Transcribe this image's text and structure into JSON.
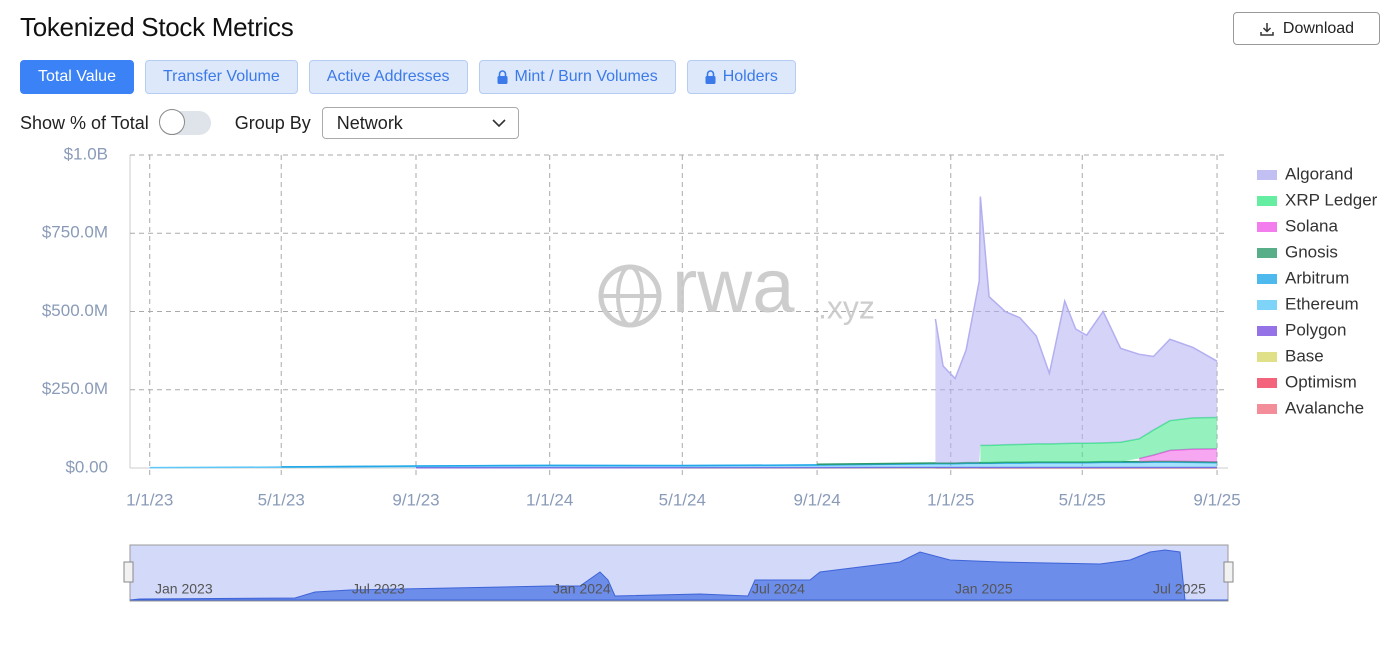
{
  "header": {
    "title": "Tokenized Stock Metrics",
    "download": "Download"
  },
  "tabs": [
    "Total Value",
    "Transfer Volume",
    "Active Addresses",
    "Mint / Burn Volumes",
    "Holders"
  ],
  "controls": {
    "toggle_label": "Show % of Total",
    "group_by_label": "Group By",
    "group_by_value": "Network"
  },
  "watermark": {
    "main": "rwa",
    "suffix": ".xyz"
  },
  "navigator": {
    "labels": [
      "Jan 2023",
      "Jul 2023",
      "Jan 2024",
      "Jul 2024",
      "Jan 2025",
      "Jul 2025"
    ]
  },
  "chart_data": {
    "type": "stacked_area",
    "x": [
      "2023-01-01",
      "2023-05-01",
      "2023-09-01",
      "2024-01-01",
      "2024-05-01",
      "2024-09-01",
      "2024-12-18",
      "2024-12-25",
      "2025-01-05",
      "2025-01-15",
      "2025-01-27",
      "2025-01-28",
      "2025-02-05",
      "2025-02-20",
      "2025-03-05",
      "2025-03-20",
      "2025-04-01",
      "2025-04-15",
      "2025-04-25",
      "2025-05-05",
      "2025-05-20",
      "2025-06-05",
      "2025-06-22",
      "2025-07-05",
      "2025-07-20",
      "2025-08-10",
      "2025-09-01"
    ],
    "xlim": [
      "2022-12-14",
      "2025-09-11"
    ],
    "xticks": [
      {
        "value": "2023-01-01",
        "label": "1/1/23"
      },
      {
        "value": "2023-05-01",
        "label": "5/1/23"
      },
      {
        "value": "2023-09-01",
        "label": "9/1/23"
      },
      {
        "value": "2024-01-01",
        "label": "1/1/24"
      },
      {
        "value": "2024-05-01",
        "label": "5/1/24"
      },
      {
        "value": "2024-09-01",
        "label": "9/1/24"
      },
      {
        "value": "2025-01-01",
        "label": "1/1/25"
      },
      {
        "value": "2025-05-01",
        "label": "5/1/25"
      },
      {
        "value": "2025-09-01",
        "label": "9/1/25"
      }
    ],
    "ylim": [
      0,
      1000000000
    ],
    "yticks": [
      {
        "value": 0,
        "label": "$0.00"
      },
      {
        "value": 250000000,
        "label": "$250.0M"
      },
      {
        "value": 500000000,
        "label": "$500.0M"
      },
      {
        "value": 750000000,
        "label": "$750.0M"
      },
      {
        "value": 1000000000,
        "label": "$1.0B"
      }
    ],
    "grid": true,
    "legend": "right",
    "series": [
      {
        "name": "Algorand",
        "color": "#b3aff0",
        "values": [
          null,
          null,
          null,
          null,
          null,
          null,
          460000000,
          310000000,
          270000000,
          360000000,
          580000000,
          795000000,
          475000000,
          425000000,
          405000000,
          345000000,
          225000000,
          455000000,
          365000000,
          345000000,
          420000000,
          300000000,
          270000000,
          235000000,
          260000000,
          225000000,
          180000000
        ]
      },
      {
        "name": "XRP Ledger",
        "color": "#3ee889",
        "values": [
          null,
          null,
          null,
          null,
          null,
          null,
          null,
          null,
          null,
          null,
          null,
          55000000,
          55000000,
          56000000,
          57000000,
          58000000,
          58000000,
          59000000,
          60000000,
          60000000,
          60000000,
          62000000,
          63000000,
          80000000,
          95000000,
          100000000,
          100000000
        ]
      },
      {
        "name": "Solana",
        "color": "#f05ce8",
        "values": [
          null,
          null,
          null,
          null,
          null,
          null,
          null,
          null,
          null,
          null,
          null,
          null,
          null,
          null,
          null,
          null,
          null,
          null,
          null,
          null,
          null,
          null,
          10000000,
          20000000,
          35000000,
          40000000,
          42000000
        ]
      },
      {
        "name": "Gnosis",
        "color": "#2e9a6a",
        "values": [
          null,
          null,
          null,
          null,
          null,
          2000000,
          2000000,
          2000000,
          2000000,
          2000000,
          2000000,
          2000000,
          2000000,
          2000000,
          2000000,
          2000000,
          2000000,
          2000000,
          2000000,
          2000000,
          2000000,
          2000000,
          2000000,
          2000000,
          2000000,
          2000000,
          2000000
        ]
      },
      {
        "name": "Arbitrum",
        "color": "#22a8e8",
        "values": [
          null,
          500000,
          500000,
          500000,
          500000,
          500000,
          500000,
          500000,
          500000,
          500000,
          500000,
          500000,
          500000,
          500000,
          500000,
          500000,
          500000,
          500000,
          500000,
          500000,
          500000,
          500000,
          500000,
          500000,
          500000,
          500000,
          500000
        ]
      },
      {
        "name": "Ethereum",
        "color": "#5ec8f8",
        "values": [
          1000000,
          3000000,
          5000000,
          7000000,
          6000000,
          8000000,
          12000000,
          12000000,
          12000000,
          13000000,
          13000000,
          13000000,
          13000000,
          14000000,
          14000000,
          15000000,
          15000000,
          15000000,
          15000000,
          15000000,
          16000000,
          16000000,
          16000000,
          17000000,
          17000000,
          16000000,
          15000000
        ]
      },
      {
        "name": "Polygon",
        "color": "#7b4fe0",
        "values": [
          null,
          null,
          1000000,
          1000000,
          1000000,
          1000000,
          1000000,
          1000000,
          1000000,
          1000000,
          1000000,
          1000000,
          1000000,
          1000000,
          1000000,
          1000000,
          1000000,
          1000000,
          1000000,
          1000000,
          1000000,
          1000000,
          1000000,
          1000000,
          1000000,
          1000000,
          1000000
        ]
      },
      {
        "name": "Base",
        "color": "#d8d86a",
        "values": [
          null,
          null,
          null,
          null,
          300000,
          300000,
          300000,
          300000,
          300000,
          300000,
          300000,
          300000,
          300000,
          300000,
          300000,
          300000,
          300000,
          300000,
          300000,
          300000,
          300000,
          300000,
          300000,
          300000,
          300000,
          300000,
          300000
        ]
      },
      {
        "name": "Optimism",
        "color": "#f03c5a",
        "values": [
          null,
          null,
          null,
          null,
          null,
          null,
          200000,
          200000,
          200000,
          200000,
          200000,
          200000,
          200000,
          200000,
          200000,
          200000,
          200000,
          200000,
          200000,
          200000,
          200000,
          200000,
          200000,
          200000,
          200000,
          200000,
          200000
        ]
      },
      {
        "name": "Avalanche",
        "color": "#f07080",
        "values": [
          null,
          null,
          null,
          null,
          null,
          null,
          null,
          null,
          null,
          null,
          200000,
          200000,
          200000,
          200000,
          200000,
          200000,
          200000,
          200000,
          200000,
          200000,
          200000,
          200000,
          200000,
          200000,
          200000,
          200000,
          200000
        ]
      }
    ]
  }
}
